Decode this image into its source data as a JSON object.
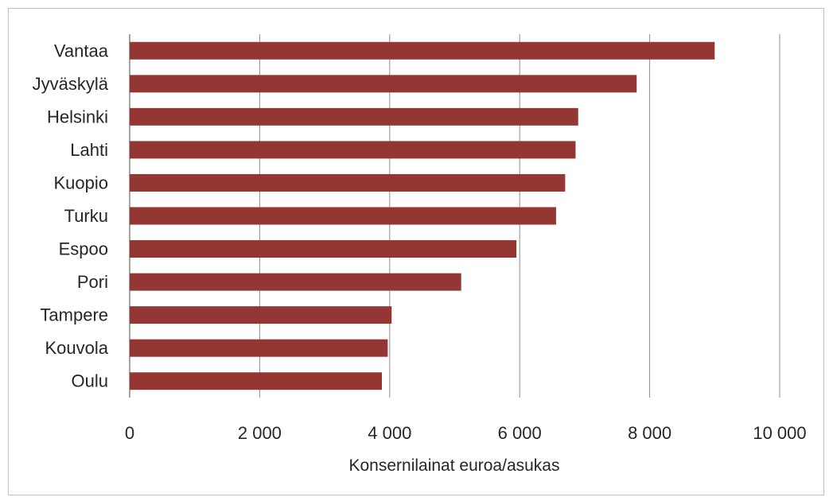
{
  "chart_data": {
    "type": "bar",
    "orientation": "horizontal",
    "categories": [
      "Vantaa",
      "Jyväskylä",
      "Helsinki",
      "Lahti",
      "Kuopio",
      "Turku",
      "Espoo",
      "Pori",
      "Tampere",
      "Kouvola",
      "Oulu"
    ],
    "values": [
      9000,
      7800,
      6900,
      6860,
      6700,
      6560,
      5950,
      5100,
      4030,
      3970,
      3880
    ],
    "xlabel": "Konsernilainat euroa/asukas",
    "ylabel": "",
    "title": "",
    "xlim": [
      0,
      10000
    ],
    "xticks": [
      0,
      2000,
      4000,
      6000,
      8000,
      10000
    ],
    "xtick_labels": [
      "0",
      "2 000",
      "4 000",
      "6 000",
      "8 000",
      "10 000"
    ],
    "grid": "vertical",
    "legend": "none",
    "bar_color": "#943634"
  }
}
